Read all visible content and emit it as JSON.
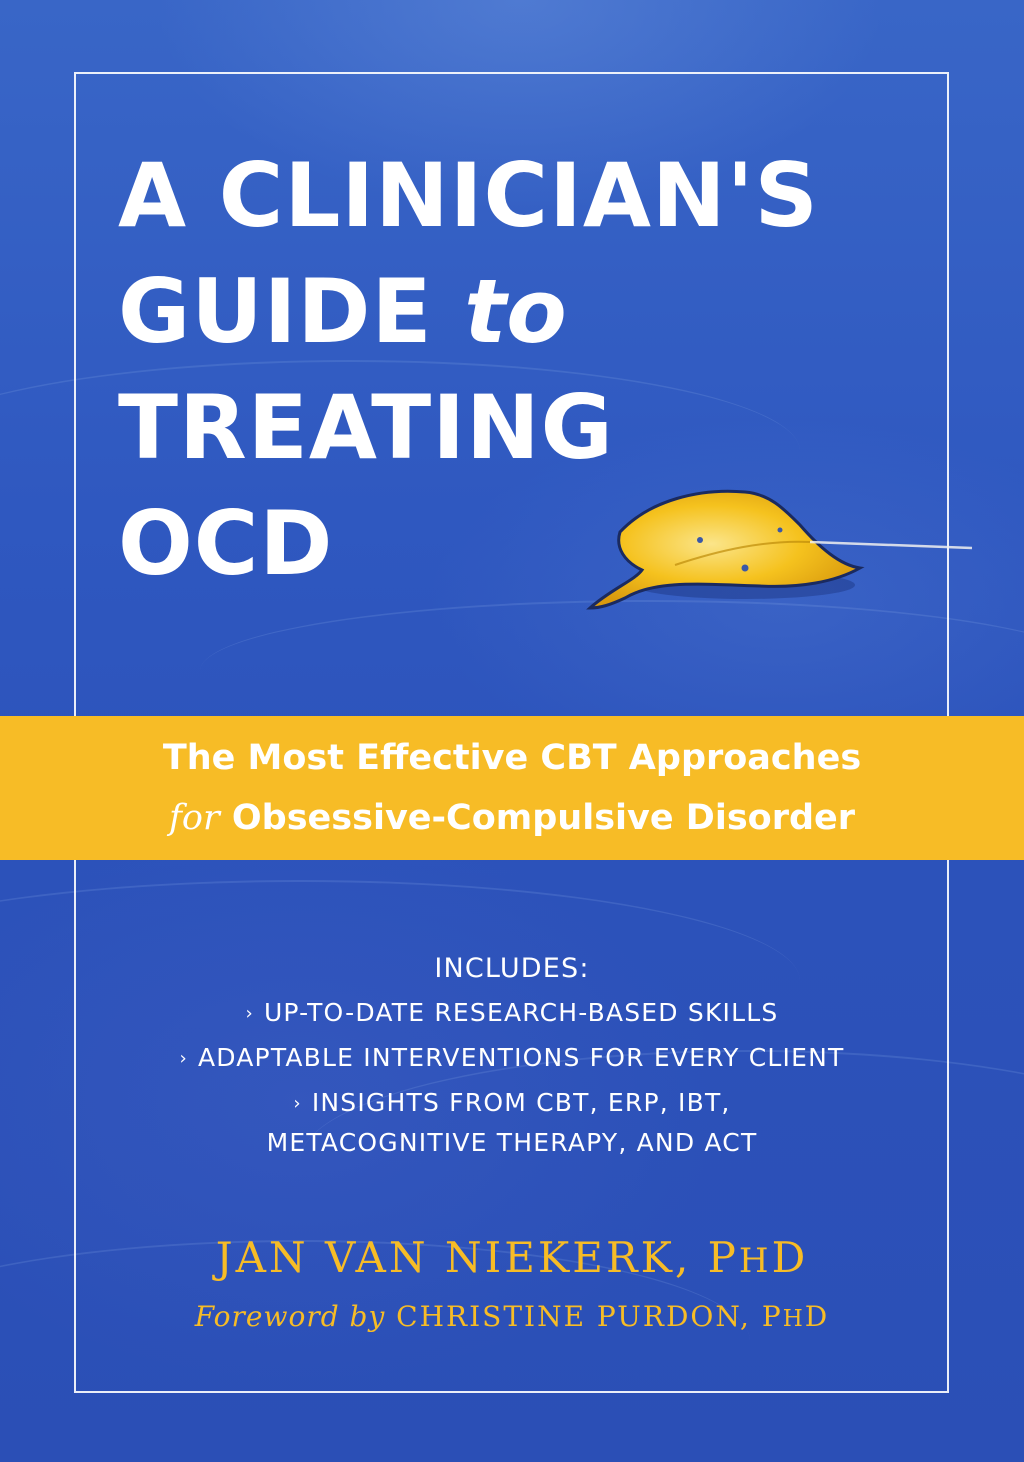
{
  "cover": {
    "title": {
      "line1": "A CLINICIAN'S",
      "line2_main": "GUIDE",
      "line2_to": "to",
      "line3": "TREATING",
      "line4": "OCD"
    },
    "subtitle": {
      "line1": "The Most Effective CBT Approaches",
      "line2_for": "for",
      "line2_rest": "Obsessive-Compulsive Disorder"
    },
    "includes": {
      "heading": "INCLUDES:",
      "items": [
        "UP-TO-DATE RESEARCH-BASED SKILLS",
        "ADAPTABLE INTERVENTIONS FOR EVERY CLIENT",
        "INSIGHTS FROM CBT, ERP, IBT,",
        "METACOGNITIVE THERAPY, AND ACT"
      ],
      "bullet": "›"
    },
    "author": {
      "name": "JAN VAN NIEKERK, P",
      "degree_small": "H",
      "degree_end": "D"
    },
    "foreword": {
      "label": "Foreword by",
      "name": "CHRISTINE PURDON, P",
      "degree_small": "H",
      "degree_end": "D"
    },
    "colors": {
      "background": "#2f58c0",
      "band": "#f7bc26",
      "title_text": "#ffffff",
      "author_text": "#f7bc26"
    },
    "icons": {
      "leaf": "floating-yellow-leaf-image"
    }
  }
}
